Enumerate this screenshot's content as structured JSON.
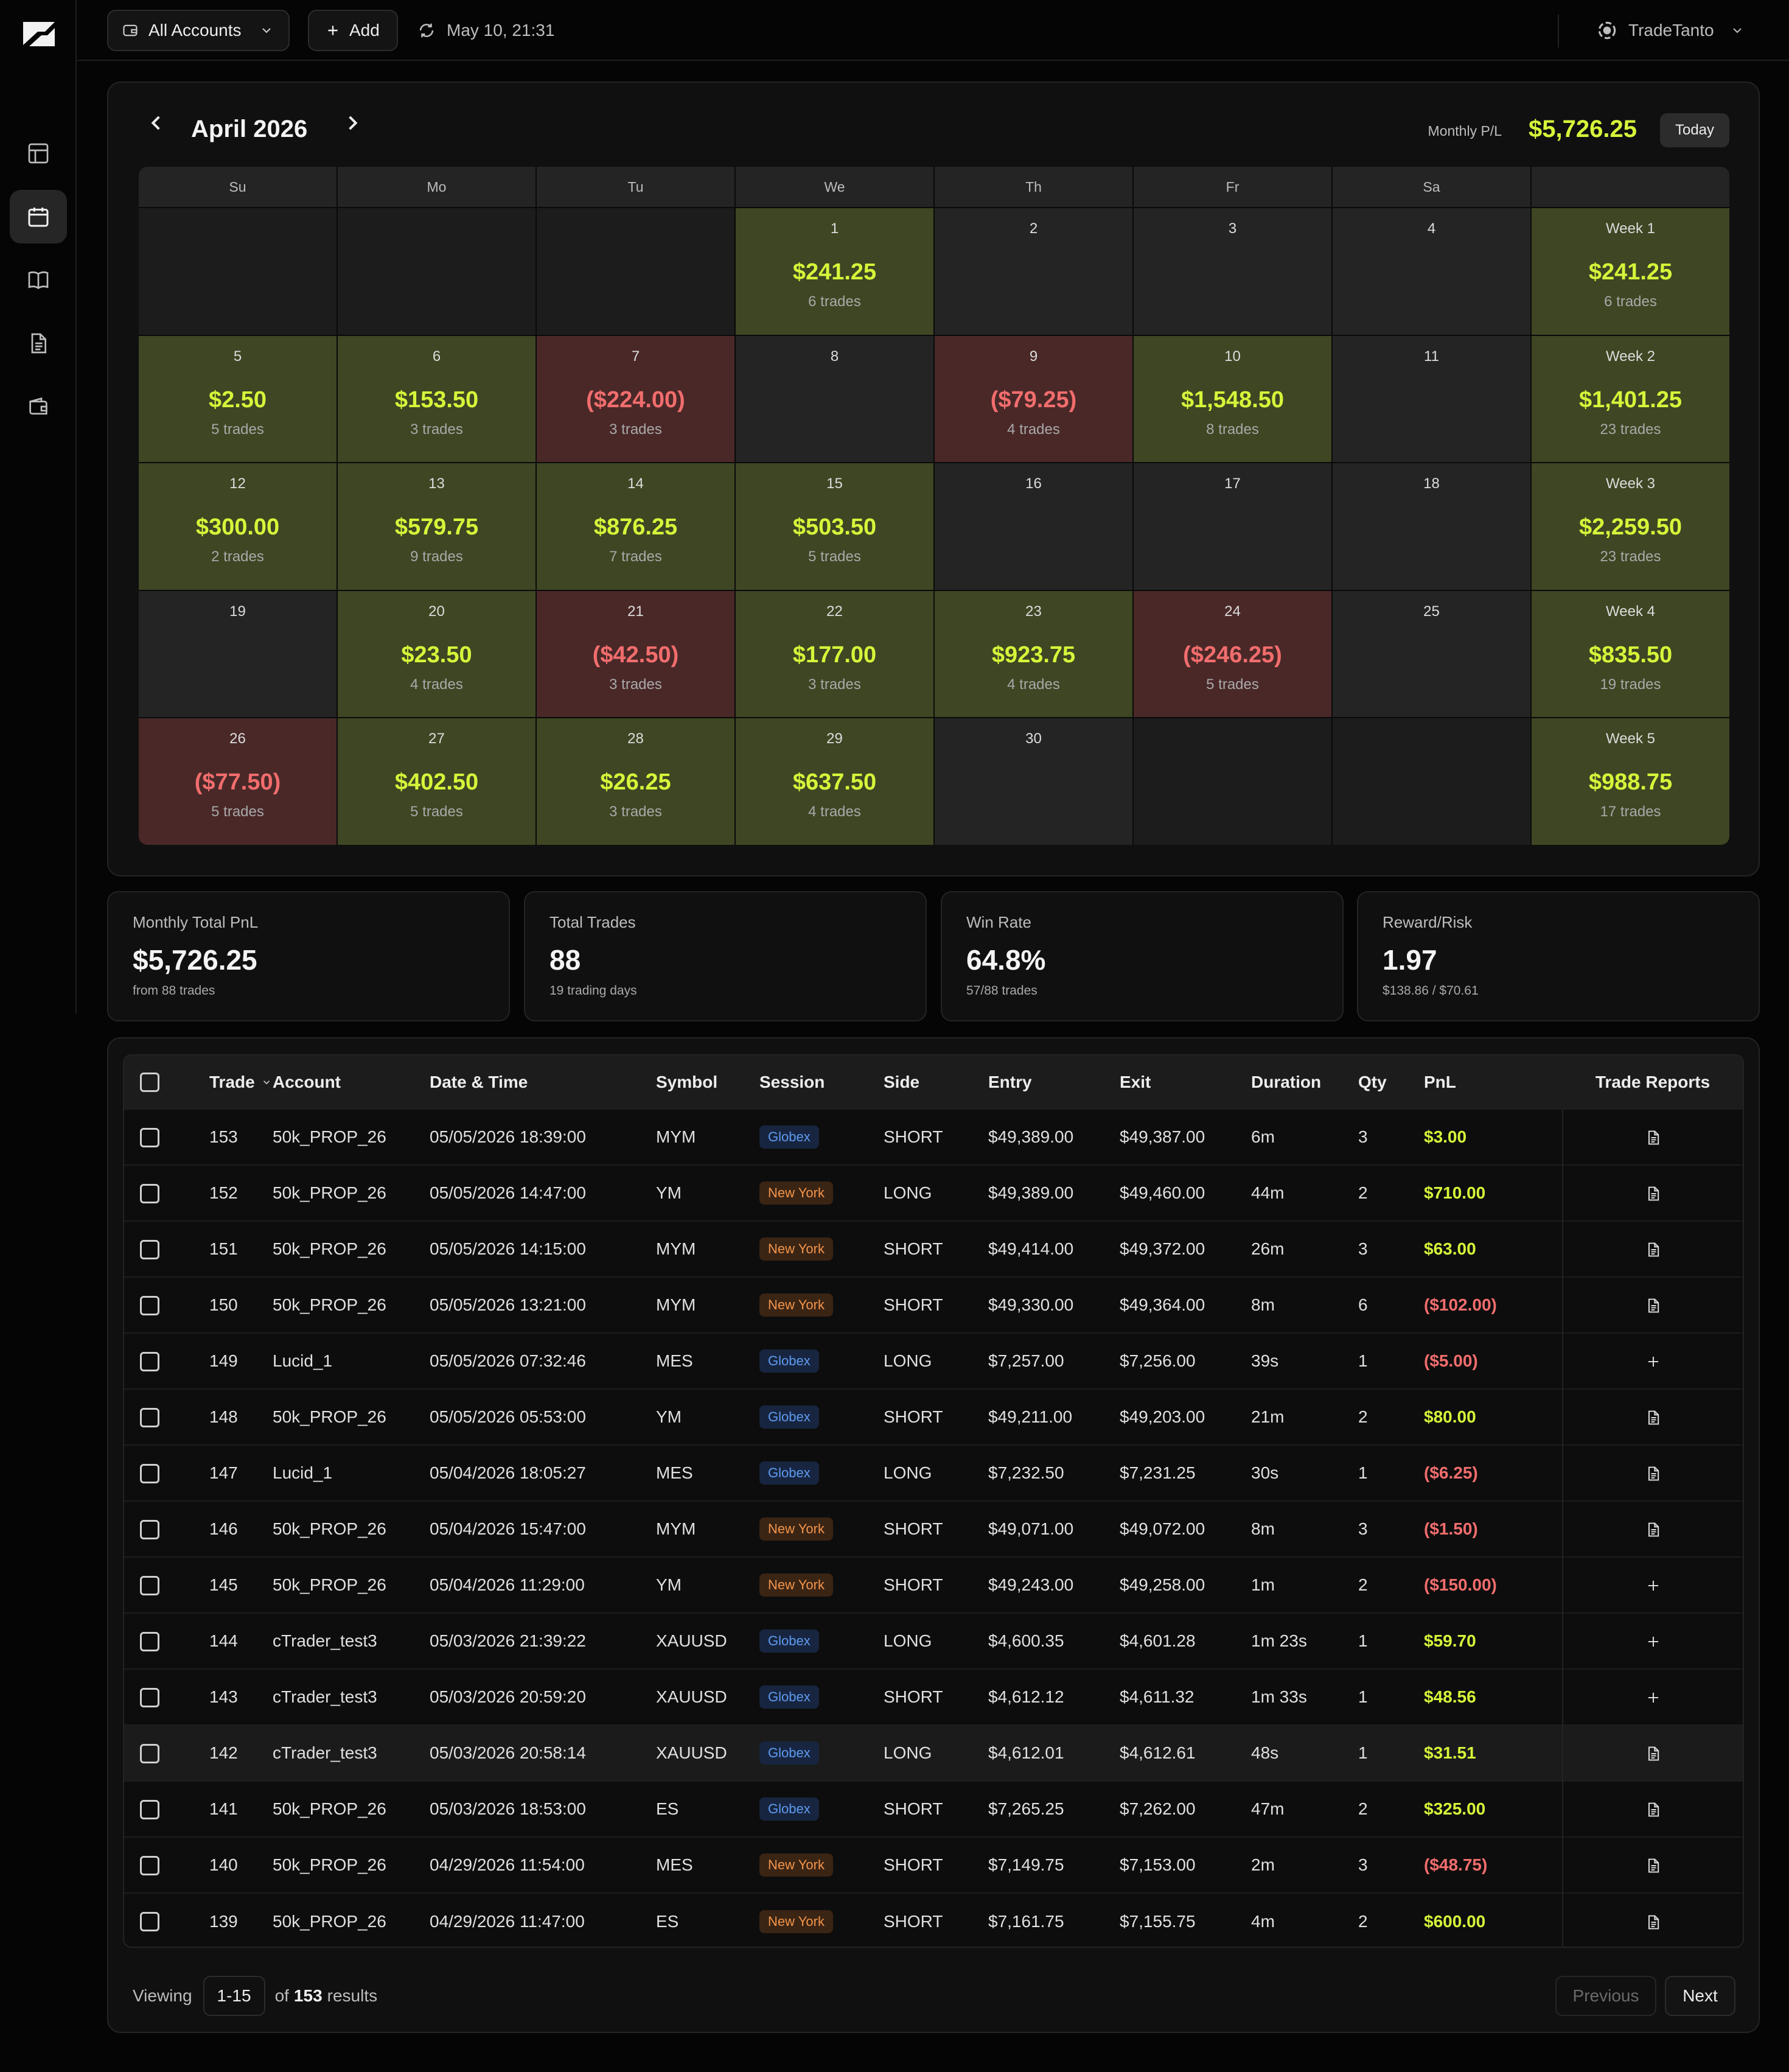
{
  "topbar": {
    "accounts_label": "All Accounts",
    "add_label": "Add",
    "sync_label": "May 10, 21:31",
    "user_label": "TradeTanto"
  },
  "calendar": {
    "month": "April 2026",
    "monthly_pl_label": "Monthly P/L",
    "monthly_pl_value": "$5,726.25",
    "today_label": "Today",
    "weekdays": [
      "Su",
      "Mo",
      "Tu",
      "We",
      "Th",
      "Fr",
      "Sa",
      ""
    ],
    "weeks": [
      {
        "days": [
          {
            "day": "",
            "pnl": "",
            "trades": "",
            "tone": "empty"
          },
          {
            "day": "",
            "pnl": "",
            "trades": "",
            "tone": "empty"
          },
          {
            "day": "",
            "pnl": "",
            "trades": "",
            "tone": "empty"
          },
          {
            "day": "1",
            "pnl": "$241.25",
            "trades": "6 trades",
            "tone": "pos"
          },
          {
            "day": "2",
            "pnl": "",
            "trades": "",
            "tone": "none"
          },
          {
            "day": "3",
            "pnl": "",
            "trades": "",
            "tone": "none"
          },
          {
            "day": "4",
            "pnl": "",
            "trades": "",
            "tone": "none"
          }
        ],
        "summary": {
          "label": "Week 1",
          "pnl": "$241.25",
          "trades": "6 trades",
          "tone": "pos"
        }
      },
      {
        "days": [
          {
            "day": "5",
            "pnl": "$2.50",
            "trades": "5 trades",
            "tone": "pos"
          },
          {
            "day": "6",
            "pnl": "$153.50",
            "trades": "3 trades",
            "tone": "pos"
          },
          {
            "day": "7",
            "pnl": "($224.00)",
            "trades": "3 trades",
            "tone": "neg"
          },
          {
            "day": "8",
            "pnl": "",
            "trades": "",
            "tone": "none"
          },
          {
            "day": "9",
            "pnl": "($79.25)",
            "trades": "4 trades",
            "tone": "neg"
          },
          {
            "day": "10",
            "pnl": "$1,548.50",
            "trades": "8 trades",
            "tone": "pos"
          },
          {
            "day": "11",
            "pnl": "",
            "trades": "",
            "tone": "none"
          }
        ],
        "summary": {
          "label": "Week 2",
          "pnl": "$1,401.25",
          "trades": "23 trades",
          "tone": "pos"
        }
      },
      {
        "days": [
          {
            "day": "12",
            "pnl": "$300.00",
            "trades": "2 trades",
            "tone": "pos"
          },
          {
            "day": "13",
            "pnl": "$579.75",
            "trades": "9 trades",
            "tone": "pos"
          },
          {
            "day": "14",
            "pnl": "$876.25",
            "trades": "7 trades",
            "tone": "pos"
          },
          {
            "day": "15",
            "pnl": "$503.50",
            "trades": "5 trades",
            "tone": "pos"
          },
          {
            "day": "16",
            "pnl": "",
            "trades": "",
            "tone": "none"
          },
          {
            "day": "17",
            "pnl": "",
            "trades": "",
            "tone": "none"
          },
          {
            "day": "18",
            "pnl": "",
            "trades": "",
            "tone": "none"
          }
        ],
        "summary": {
          "label": "Week 3",
          "pnl": "$2,259.50",
          "trades": "23 trades",
          "tone": "pos"
        }
      },
      {
        "days": [
          {
            "day": "19",
            "pnl": "",
            "trades": "",
            "tone": "none"
          },
          {
            "day": "20",
            "pnl": "$23.50",
            "trades": "4 trades",
            "tone": "pos"
          },
          {
            "day": "21",
            "pnl": "($42.50)",
            "trades": "3 trades",
            "tone": "neg"
          },
          {
            "day": "22",
            "pnl": "$177.00",
            "trades": "3 trades",
            "tone": "pos"
          },
          {
            "day": "23",
            "pnl": "$923.75",
            "trades": "4 trades",
            "tone": "pos"
          },
          {
            "day": "24",
            "pnl": "($246.25)",
            "trades": "5 trades",
            "tone": "neg"
          },
          {
            "day": "25",
            "pnl": "",
            "trades": "",
            "tone": "none"
          }
        ],
        "summary": {
          "label": "Week 4",
          "pnl": "$835.50",
          "trades": "19 trades",
          "tone": "pos"
        }
      },
      {
        "days": [
          {
            "day": "26",
            "pnl": "($77.50)",
            "trades": "5 trades",
            "tone": "neg"
          },
          {
            "day": "27",
            "pnl": "$402.50",
            "trades": "5 trades",
            "tone": "pos"
          },
          {
            "day": "28",
            "pnl": "$26.25",
            "trades": "3 trades",
            "tone": "pos"
          },
          {
            "day": "29",
            "pnl": "$637.50",
            "trades": "4 trades",
            "tone": "pos"
          },
          {
            "day": "30",
            "pnl": "",
            "trades": "",
            "tone": "none"
          },
          {
            "day": "",
            "pnl": "",
            "trades": "",
            "tone": "empty"
          },
          {
            "day": "",
            "pnl": "",
            "trades": "",
            "tone": "empty"
          }
        ],
        "summary": {
          "label": "Week 5",
          "pnl": "$988.75",
          "trades": "17 trades",
          "tone": "pos"
        }
      }
    ]
  },
  "stats": [
    {
      "label": "Monthly Total PnL",
      "value": "$5,726.25",
      "sub": "from 88 trades"
    },
    {
      "label": "Total Trades",
      "value": "88",
      "sub": "19 trading days"
    },
    {
      "label": "Win Rate",
      "value": "64.8%",
      "sub": "57/88 trades"
    },
    {
      "label": "Reward/Risk",
      "value": "1.97",
      "sub": "$138.86 / $70.61"
    }
  ],
  "table": {
    "headers": {
      "trade": "Trade",
      "account": "Account",
      "datetime": "Date & Time",
      "symbol": "Symbol",
      "session": "Session",
      "side": "Side",
      "entry": "Entry",
      "exit": "Exit",
      "duration": "Duration",
      "qty": "Qty",
      "pnl": "PnL",
      "reports": "Trade Reports"
    },
    "rows": [
      {
        "trade": "153",
        "account": "50k_PROP_26",
        "datetime": "05/05/2026 18:39:00",
        "symbol": "MYM",
        "session": "Globex",
        "side": "SHORT",
        "entry": "$49,389.00",
        "exit": "$49,387.00",
        "duration": "6m",
        "qty": "3",
        "pnl": "$3.00",
        "pnl_tone": "pos",
        "report": "document-icon"
      },
      {
        "trade": "152",
        "account": "50k_PROP_26",
        "datetime": "05/05/2026 14:47:00",
        "symbol": "YM",
        "session": "New York",
        "side": "LONG",
        "entry": "$49,389.00",
        "exit": "$49,460.00",
        "duration": "44m",
        "qty": "2",
        "pnl": "$710.00",
        "pnl_tone": "pos",
        "report": "document-icon"
      },
      {
        "trade": "151",
        "account": "50k_PROP_26",
        "datetime": "05/05/2026 14:15:00",
        "symbol": "MYM",
        "session": "New York",
        "side": "SHORT",
        "entry": "$49,414.00",
        "exit": "$49,372.00",
        "duration": "26m",
        "qty": "3",
        "pnl": "$63.00",
        "pnl_tone": "pos",
        "report": "document-icon"
      },
      {
        "trade": "150",
        "account": "50k_PROP_26",
        "datetime": "05/05/2026 13:21:00",
        "symbol": "MYM",
        "session": "New York",
        "side": "SHORT",
        "entry": "$49,330.00",
        "exit": "$49,364.00",
        "duration": "8m",
        "qty": "6",
        "pnl": "($102.00)",
        "pnl_tone": "neg",
        "report": "document-icon"
      },
      {
        "trade": "149",
        "account": "Lucid_1",
        "datetime": "05/05/2026 07:32:46",
        "symbol": "MES",
        "session": "Globex",
        "side": "LONG",
        "entry": "$7,257.00",
        "exit": "$7,256.00",
        "duration": "39s",
        "qty": "1",
        "pnl": "($5.00)",
        "pnl_tone": "neg",
        "report": "plus-icon"
      },
      {
        "trade": "148",
        "account": "50k_PROP_26",
        "datetime": "05/05/2026 05:53:00",
        "symbol": "YM",
        "session": "Globex",
        "side": "SHORT",
        "entry": "$49,211.00",
        "exit": "$49,203.00",
        "duration": "21m",
        "qty": "2",
        "pnl": "$80.00",
        "pnl_tone": "pos",
        "report": "document-icon"
      },
      {
        "trade": "147",
        "account": "Lucid_1",
        "datetime": "05/04/2026 18:05:27",
        "symbol": "MES",
        "session": "Globex",
        "side": "LONG",
        "entry": "$7,232.50",
        "exit": "$7,231.25",
        "duration": "30s",
        "qty": "1",
        "pnl": "($6.25)",
        "pnl_tone": "neg",
        "report": "document-icon"
      },
      {
        "trade": "146",
        "account": "50k_PROP_26",
        "datetime": "05/04/2026 15:47:00",
        "symbol": "MYM",
        "session": "New York",
        "side": "SHORT",
        "entry": "$49,071.00",
        "exit": "$49,072.00",
        "duration": "8m",
        "qty": "3",
        "pnl": "($1.50)",
        "pnl_tone": "neg",
        "report": "document-icon"
      },
      {
        "trade": "145",
        "account": "50k_PROP_26",
        "datetime": "05/04/2026 11:29:00",
        "symbol": "YM",
        "session": "New York",
        "side": "SHORT",
        "entry": "$49,243.00",
        "exit": "$49,258.00",
        "duration": "1m",
        "qty": "2",
        "pnl": "($150.00)",
        "pnl_tone": "neg",
        "report": "plus-icon"
      },
      {
        "trade": "144",
        "account": "cTrader_test3",
        "datetime": "05/03/2026 21:39:22",
        "symbol": "XAUUSD",
        "session": "Globex",
        "side": "LONG",
        "entry": "$4,600.35",
        "exit": "$4,601.28",
        "duration": "1m 23s",
        "qty": "1",
        "pnl": "$59.70",
        "pnl_tone": "pos",
        "report": "plus-icon"
      },
      {
        "trade": "143",
        "account": "cTrader_test3",
        "datetime": "05/03/2026 20:59:20",
        "symbol": "XAUUSD",
        "session": "Globex",
        "side": "SHORT",
        "entry": "$4,612.12",
        "exit": "$4,611.32",
        "duration": "1m 33s",
        "qty": "1",
        "pnl": "$48.56",
        "pnl_tone": "pos",
        "report": "plus-icon"
      },
      {
        "trade": "142",
        "account": "cTrader_test3",
        "datetime": "05/03/2026 20:58:14",
        "symbol": "XAUUSD",
        "session": "Globex",
        "side": "LONG",
        "entry": "$4,612.01",
        "exit": "$4,612.61",
        "duration": "48s",
        "qty": "1",
        "pnl": "$31.51",
        "pnl_tone": "pos",
        "report": "document-icon",
        "highlight": true
      },
      {
        "trade": "141",
        "account": "50k_PROP_26",
        "datetime": "05/03/2026 18:53:00",
        "symbol": "ES",
        "session": "Globex",
        "side": "SHORT",
        "entry": "$7,265.25",
        "exit": "$7,262.00",
        "duration": "47m",
        "qty": "2",
        "pnl": "$325.00",
        "pnl_tone": "pos",
        "report": "document-icon"
      },
      {
        "trade": "140",
        "account": "50k_PROP_26",
        "datetime": "04/29/2026 11:54:00",
        "symbol": "MES",
        "session": "New York",
        "side": "SHORT",
        "entry": "$7,149.75",
        "exit": "$7,153.00",
        "duration": "2m",
        "qty": "3",
        "pnl": "($48.75)",
        "pnl_tone": "neg",
        "report": "document-icon"
      },
      {
        "trade": "139",
        "account": "50k_PROP_26",
        "datetime": "04/29/2026 11:47:00",
        "symbol": "ES",
        "session": "New York",
        "side": "SHORT",
        "entry": "$7,161.75",
        "exit": "$7,155.75",
        "duration": "4m",
        "qty": "2",
        "pnl": "$600.00",
        "pnl_tone": "pos",
        "report": "document-icon"
      }
    ]
  },
  "pagination": {
    "viewing_label": "Viewing",
    "range": "1-15",
    "of_label": "of",
    "total": "153",
    "results_label": "results",
    "prev_label": "Previous",
    "next_label": "Next"
  },
  "colors": {
    "positive": "#D6F53A",
    "negative": "#F26D6D",
    "positive_cell": "#3E4623",
    "negative_cell": "#4A2828",
    "globex_badge": "#5E9BF0",
    "newyork_badge": "#F2954A"
  },
  "sidebar": {
    "items": [
      {
        "icon": "dashboard-icon",
        "active": false
      },
      {
        "icon": "calendar-icon",
        "active": true
      },
      {
        "icon": "journal-book-icon",
        "active": false
      },
      {
        "icon": "reports-document-icon",
        "active": false
      },
      {
        "icon": "wallet-icon",
        "active": false
      }
    ]
  }
}
